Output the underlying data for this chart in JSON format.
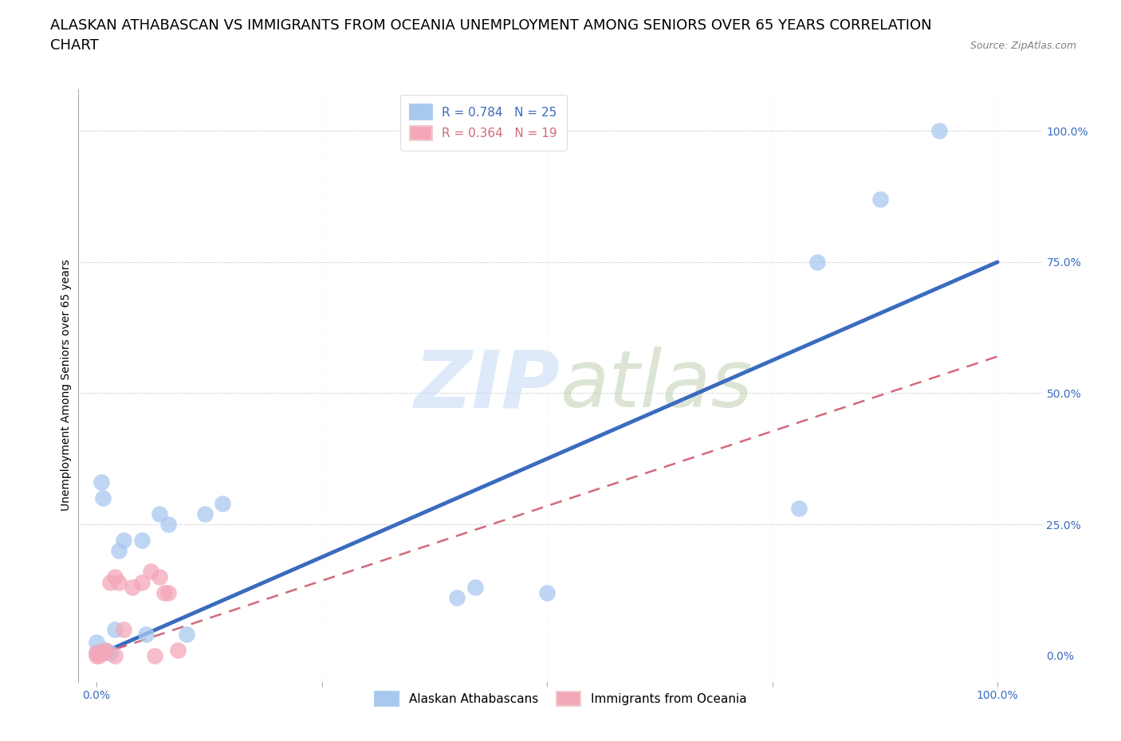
{
  "title": "ALASKAN ATHABASCAN VS IMMIGRANTS FROM OCEANIA UNEMPLOYMENT AMONG SENIORS OVER 65 YEARS CORRELATION\nCHART",
  "source": "Source: ZipAtlas.com",
  "ylabel": "Unemployment Among Seniors over 65 years",
  "xlabel_ticks": [
    "0.0%",
    "",
    "",
    "",
    "100.0%"
  ],
  "xlabel_vals": [
    0.0,
    0.25,
    0.5,
    0.75,
    1.0
  ],
  "ylabel_ticks": [
    "100.0%",
    "75.0%",
    "50.0%",
    "25.0%",
    "0.0%"
  ],
  "ylabel_vals": [
    1.0,
    0.75,
    0.5,
    0.25,
    0.0
  ],
  "xlim": [
    -0.02,
    1.05
  ],
  "ylim": [
    -0.05,
    1.08
  ],
  "blue_R": 0.784,
  "blue_N": 25,
  "pink_R": 0.364,
  "pink_N": 19,
  "blue_scatter_x": [
    0.0,
    0.0,
    0.003,
    0.005,
    0.007,
    0.01,
    0.01,
    0.015,
    0.02,
    0.025,
    0.03,
    0.05,
    0.055,
    0.07,
    0.08,
    0.1,
    0.12,
    0.14,
    0.4,
    0.42,
    0.5,
    0.78,
    0.8,
    0.87,
    0.935
  ],
  "blue_scatter_y": [
    0.005,
    0.025,
    0.005,
    0.33,
    0.3,
    0.005,
    0.01,
    0.005,
    0.05,
    0.2,
    0.22,
    0.22,
    0.04,
    0.27,
    0.25,
    0.04,
    0.27,
    0.29,
    0.11,
    0.13,
    0.12,
    0.28,
    0.75,
    0.87,
    1.0
  ],
  "pink_scatter_x": [
    0.0,
    0.0,
    0.003,
    0.005,
    0.007,
    0.01,
    0.015,
    0.02,
    0.02,
    0.025,
    0.03,
    0.04,
    0.05,
    0.06,
    0.065,
    0.07,
    0.075,
    0.08,
    0.09
  ],
  "pink_scatter_y": [
    0.0,
    0.005,
    0.0,
    0.005,
    0.005,
    0.01,
    0.14,
    0.15,
    0.0,
    0.14,
    0.05,
    0.13,
    0.14,
    0.16,
    0.0,
    0.15,
    0.12,
    0.12,
    0.01
  ],
  "blue_line_x": [
    0.0,
    1.0
  ],
  "blue_line_y": [
    0.0,
    0.75
  ],
  "pink_line_x": [
    0.0,
    1.0
  ],
  "pink_line_y": [
    0.0,
    0.57
  ],
  "blue_color": "#A8C8F0",
  "pink_color": "#F4A7B9",
  "blue_line_color": "#3B6BBF",
  "pink_line_color": "#D4697A",
  "grid_color": "#BBBBBB",
  "watermark_color": "#C8DCF5",
  "background_color": "#FFFFFF",
  "title_fontsize": 13,
  "axis_label_fontsize": 10,
  "tick_fontsize": 10,
  "legend_fontsize": 11,
  "source_fontsize": 9
}
